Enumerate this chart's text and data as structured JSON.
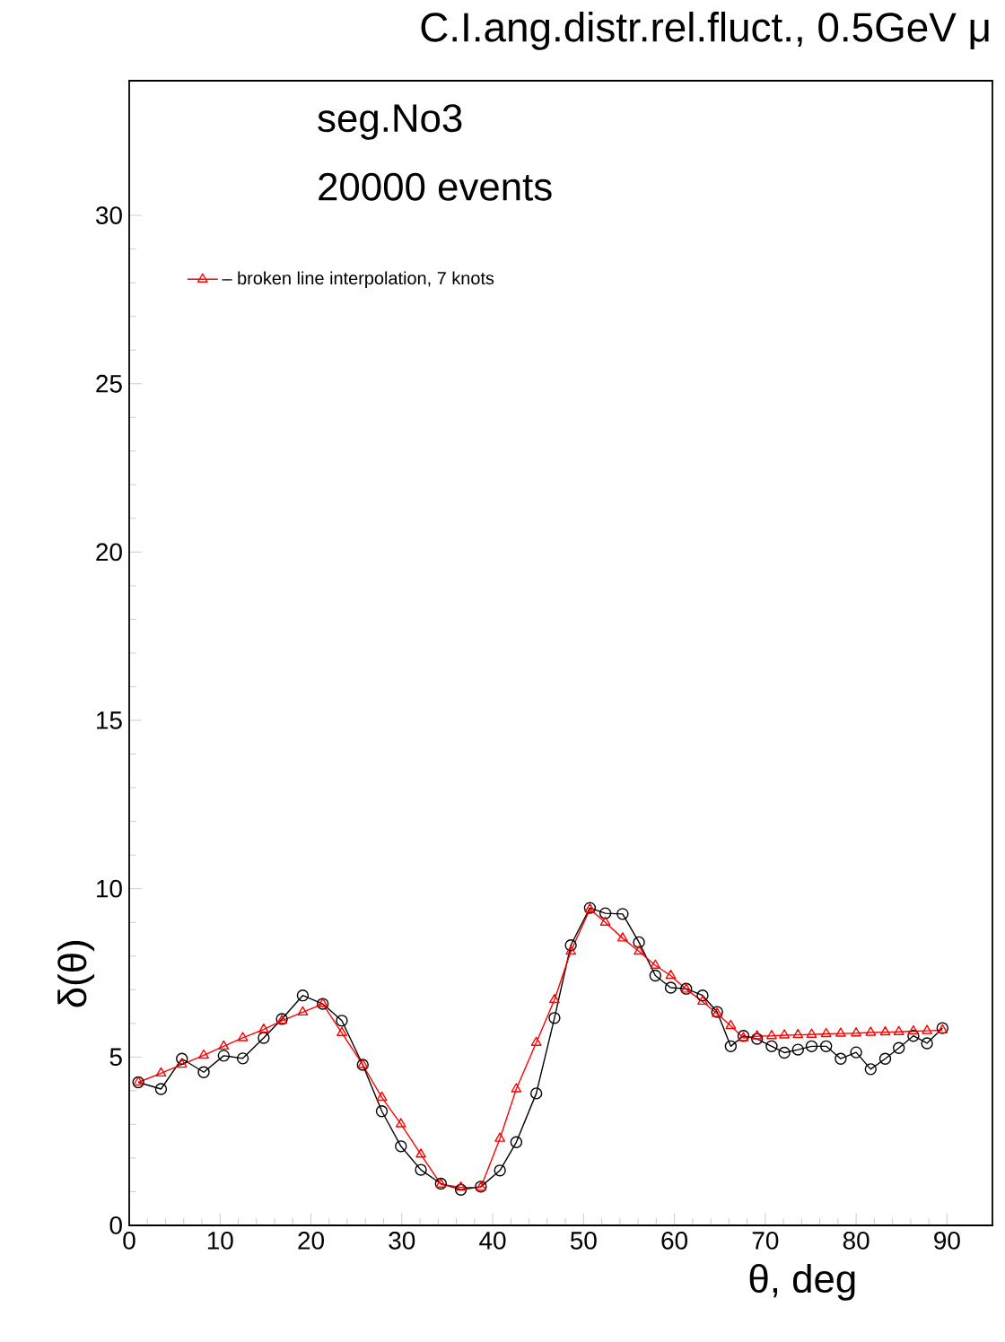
{
  "chart_data": {
    "type": "line",
    "title": "C.I.ang.distr.rel.fluct., 0.5GeV μ",
    "xlabel": "θ, deg",
    "ylabel": "δ(θ)",
    "annotations": [
      "seg.No3",
      "20000 events"
    ],
    "xlim": [
      0,
      95
    ],
    "ylim": [
      0,
      34
    ],
    "xticks": [
      0,
      10,
      20,
      30,
      40,
      50,
      60,
      70,
      80,
      90
    ],
    "yticks": [
      0,
      5,
      10,
      15,
      20,
      25,
      30
    ],
    "legend": "top left",
    "grid": false,
    "series": [
      {
        "color": "#000000",
        "marker": "circle",
        "x": [
          1.0,
          3.5,
          5.8,
          8.2,
          10.4,
          12.5,
          14.8,
          16.8,
          19.1,
          21.3,
          23.4,
          25.7,
          27.8,
          29.9,
          32.1,
          34.3,
          36.5,
          38.7,
          40.8,
          42.6,
          44.8,
          46.8,
          48.6,
          50.7,
          52.4,
          54.3,
          56.1,
          57.9,
          59.6,
          61.3,
          63.1,
          64.7,
          66.2,
          67.6,
          69.1,
          70.7,
          72.1,
          73.6,
          75.1,
          76.7,
          78.3,
          80.0,
          81.6,
          83.2,
          84.7,
          86.3,
          87.8,
          89.5
        ],
        "values": [
          4.25,
          4.05,
          4.95,
          4.55,
          5.04,
          4.96,
          5.57,
          6.13,
          6.83,
          6.58,
          6.08,
          4.77,
          3.39,
          2.35,
          1.65,
          1.24,
          1.06,
          1.15,
          1.63,
          2.47,
          3.92,
          6.16,
          8.32,
          9.43,
          9.27,
          9.25,
          8.41,
          7.42,
          7.06,
          7.03,
          6.83,
          6.34,
          5.32,
          5.63,
          5.54,
          5.32,
          5.13,
          5.22,
          5.32,
          5.32,
          4.95,
          5.14,
          4.64,
          4.95,
          5.27,
          5.63,
          5.41,
          5.86
        ]
      },
      {
        "name": "– broken line interpolation, 7 knots",
        "color": "#ff0000",
        "marker": "triangle",
        "x": [
          1.0,
          3.5,
          5.8,
          8.2,
          10.4,
          12.5,
          14.8,
          16.8,
          19.1,
          21.3,
          23.4,
          25.7,
          27.8,
          29.9,
          32.1,
          34.3,
          36.5,
          38.7,
          40.8,
          42.6,
          44.8,
          46.8,
          48.6,
          50.7,
          52.4,
          54.3,
          56.1,
          57.9,
          59.6,
          61.3,
          63.1,
          64.7,
          66.2,
          67.6,
          69.1,
          70.7,
          72.1,
          73.6,
          75.1,
          76.7,
          78.3,
          80.0,
          81.6,
          83.2,
          84.7,
          86.3,
          87.8,
          89.5
        ],
        "values": [
          4.25,
          4.52,
          4.78,
          5.05,
          5.32,
          5.57,
          5.82,
          6.08,
          6.33,
          6.58,
          5.72,
          4.77,
          3.8,
          3.01,
          2.11,
          1.22,
          1.13,
          1.13,
          2.58,
          4.05,
          5.43,
          6.7,
          8.14,
          9.39,
          9.0,
          8.53,
          8.14,
          7.72,
          7.42,
          7.01,
          6.65,
          6.29,
          5.93,
          5.57,
          5.62,
          5.63,
          5.65,
          5.66,
          5.67,
          5.69,
          5.7,
          5.71,
          5.73,
          5.74,
          5.75,
          5.77,
          5.78,
          5.8
        ]
      }
    ]
  }
}
